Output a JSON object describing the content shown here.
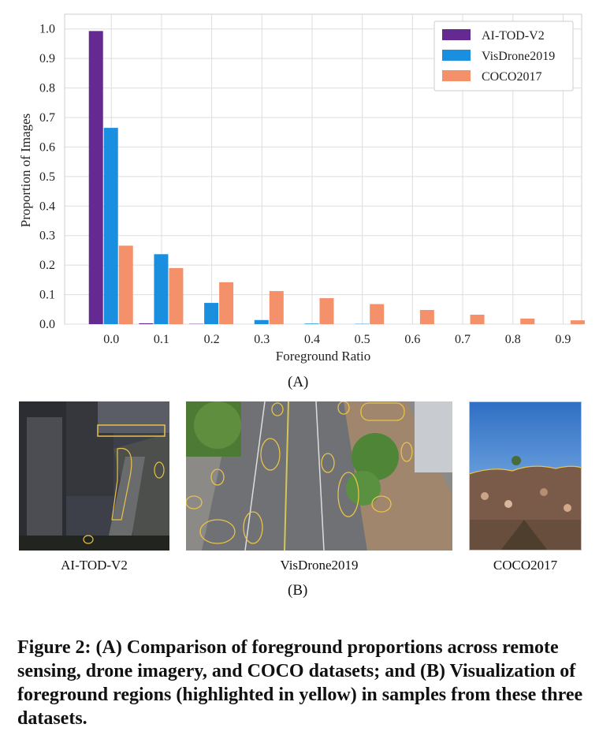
{
  "chart_data": {
    "type": "bar",
    "xlabel": "Foreground Ratio",
    "ylabel": "Proportion of Images",
    "categories": [
      "0.0",
      "0.1",
      "0.2",
      "0.3",
      "0.4",
      "0.5",
      "0.6",
      "0.7",
      "0.8",
      "0.9"
    ],
    "yticks": [
      "0.0",
      "0.1",
      "0.2",
      "0.3",
      "0.4",
      "0.5",
      "0.6",
      "0.7",
      "0.8",
      "0.9",
      "1.0"
    ],
    "ylim": [
      0,
      1.05
    ],
    "grid": true,
    "legend_position": "top-right",
    "series": [
      {
        "name": "AI-TOD-V2",
        "color": "#652a91",
        "values": [
          0.993,
          0.003,
          0.001,
          0.0,
          0.0,
          0.0,
          0.0,
          0.0,
          0.0,
          0.0
        ]
      },
      {
        "name": "VisDrone2019",
        "color": "#1b8fdf",
        "values": [
          0.665,
          0.237,
          0.072,
          0.014,
          0.002,
          0.001,
          0.0,
          0.0,
          0.0,
          0.0
        ]
      },
      {
        "name": "COCO2017",
        "color": "#f4906a",
        "values": [
          0.266,
          0.19,
          0.142,
          0.112,
          0.088,
          0.068,
          0.048,
          0.032,
          0.019,
          0.013
        ]
      }
    ]
  },
  "panels": {
    "a_label": "(A)",
    "b_label": "(B)",
    "thumbs": [
      "AI-TOD-V2",
      "VisDrone2019",
      "COCO2017"
    ]
  },
  "caption": "Figure 2: (A) Comparison of foreground proportions across remote sensing, drone imagery, and COCO datasets; and (B) Visualization of foreground regions (highlighted in yellow) in samples from these three datasets.",
  "colors": {
    "highlight": "#e8c24a",
    "grid": "#dddddd"
  }
}
